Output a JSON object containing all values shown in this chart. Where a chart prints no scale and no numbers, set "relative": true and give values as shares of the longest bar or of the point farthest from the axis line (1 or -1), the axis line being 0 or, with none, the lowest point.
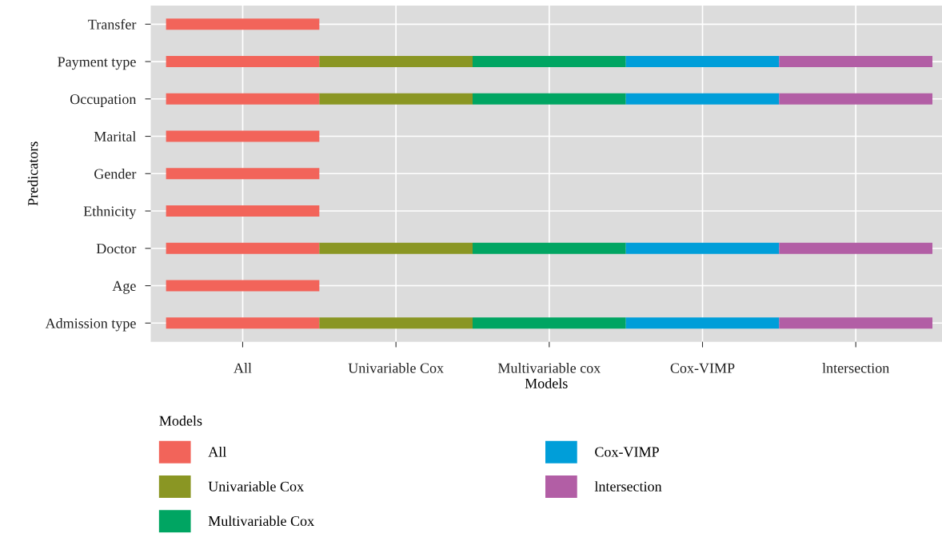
{
  "chart_data": {
    "type": "bar",
    "orientation": "horizontal",
    "stacked": true,
    "relative": true,
    "xlabel": "Models",
    "ylabel": "Predicators",
    "legend_title": "Models",
    "categories": [
      "Transfer",
      "Payment type",
      "Occupation",
      "Marital",
      "Gender",
      "Ethnicity",
      "Doctor",
      "Age",
      "Admission type"
    ],
    "series": [
      {
        "name": "All",
        "color": "#f2645a",
        "values": [
          0.2,
          0.2,
          0.2,
          0.2,
          0.2,
          0.2,
          0.2,
          0.2,
          0.2
        ]
      },
      {
        "name": "Univariable Cox",
        "color": "#8a9623",
        "values": [
          null,
          0.2,
          0.2,
          null,
          null,
          null,
          0.2,
          null,
          0.2
        ]
      },
      {
        "name": "Multivariable Cox",
        "color": "#00a562",
        "values": [
          null,
          0.2,
          0.2,
          null,
          null,
          null,
          0.2,
          null,
          0.2
        ]
      },
      {
        "name": "Cox-VIMP",
        "color": "#009ed9",
        "values": [
          null,
          0.2,
          0.2,
          null,
          null,
          null,
          0.2,
          null,
          0.2
        ]
      },
      {
        "name": "lntersection",
        "color": "#b25ea5",
        "values": [
          null,
          0.2,
          0.2,
          null,
          null,
          null,
          0.2,
          null,
          0.2
        ]
      }
    ],
    "annotations": [
      "All",
      "Univariable Cox",
      "Multivariable cox",
      "Cox-VIMP",
      "lntersection"
    ],
    "grid": true,
    "legend": "bottom"
  }
}
